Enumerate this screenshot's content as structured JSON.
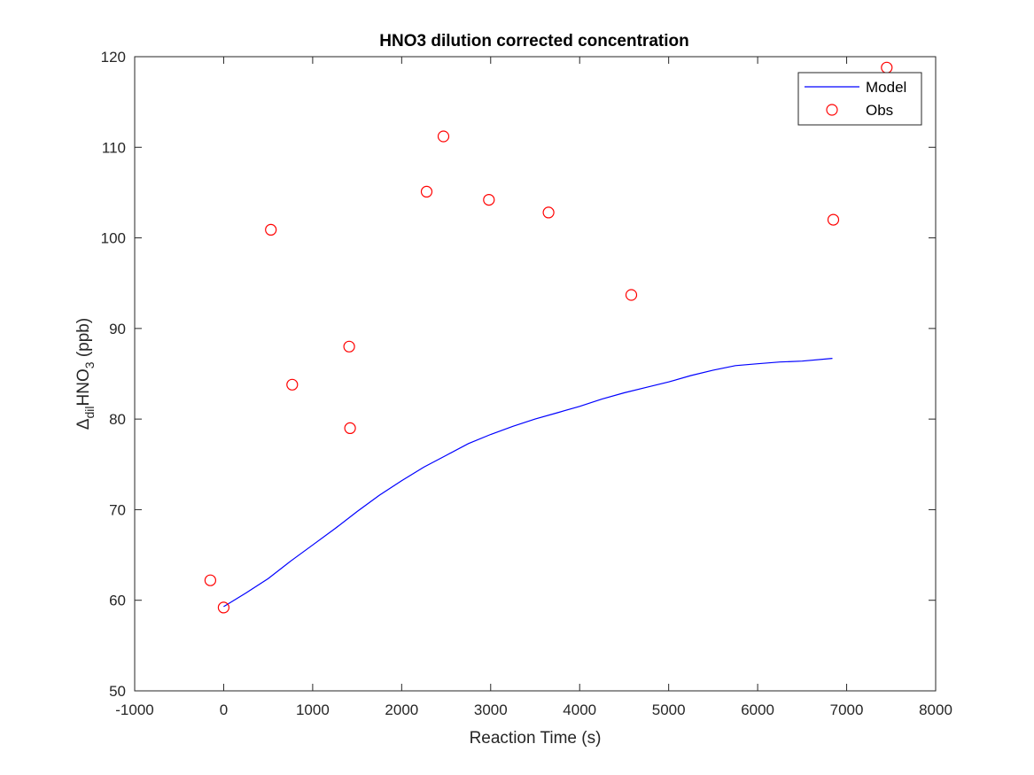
{
  "chart_data": {
    "type": "scatter",
    "title": "HNO3 dilution corrected concentration",
    "xlabel": "Reaction Time (s)",
    "ylabel": {
      "delta": "Δ",
      "sub1": "dil",
      "main": "HNO",
      "sub2": "3",
      "unit": " (ppb)"
    },
    "xlim": [
      -1000,
      8000
    ],
    "ylim": [
      50,
      120
    ],
    "xticks": [
      -1000,
      0,
      1000,
      2000,
      3000,
      4000,
      5000,
      6000,
      7000,
      8000
    ],
    "yticks": [
      50,
      60,
      70,
      80,
      90,
      100,
      110,
      120
    ],
    "legend_position": "top-right",
    "grid": false,
    "series": [
      {
        "name": "Model",
        "kind": "line",
        "color": "#0000ff",
        "x": [
          0,
          250,
          500,
          750,
          1000,
          1250,
          1500,
          1750,
          2000,
          2250,
          2500,
          2750,
          3000,
          3250,
          3500,
          3750,
          4000,
          4250,
          4500,
          4750,
          5000,
          5250,
          5500,
          5750,
          6000,
          6250,
          6500,
          6840
        ],
        "y": [
          59.3,
          60.8,
          62.4,
          64.3,
          66.1,
          67.9,
          69.8,
          71.6,
          73.2,
          74.7,
          76.0,
          77.3,
          78.3,
          79.2,
          80.0,
          80.7,
          81.4,
          82.2,
          82.9,
          83.5,
          84.1,
          84.8,
          85.4,
          85.9,
          86.1,
          86.3,
          86.4,
          86.7
        ]
      },
      {
        "name": "Obs",
        "kind": "markers",
        "color": "#ff0000",
        "x": [
          -150,
          0,
          530,
          770,
          1410,
          1420,
          2280,
          2470,
          2980,
          3650,
          4580,
          6850,
          7450
        ],
        "y": [
          62.2,
          59.2,
          100.9,
          83.8,
          88.0,
          79.0,
          105.1,
          111.2,
          104.2,
          102.8,
          93.7,
          102.0,
          118.8
        ]
      }
    ]
  }
}
